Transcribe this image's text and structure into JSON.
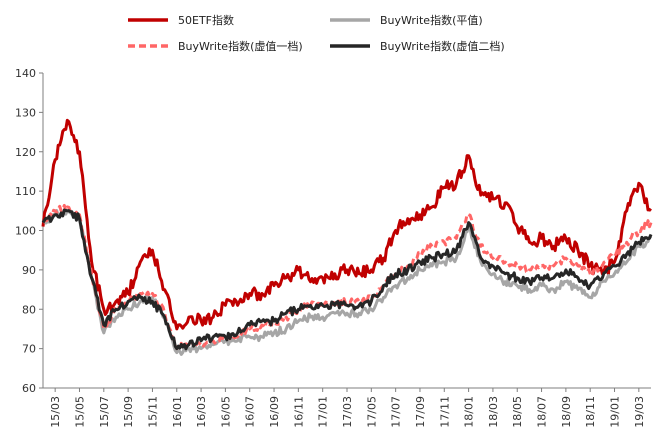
{
  "chart_data": {
    "type": "line",
    "title": "",
    "xlabel": "",
    "ylabel": "",
    "ylim": [
      60,
      140
    ],
    "yticks": [
      60,
      70,
      80,
      90,
      100,
      110,
      120,
      130,
      140
    ],
    "xticks": [
      "15/03",
      "15/05",
      "15/07",
      "15/09",
      "15/11",
      "16/01",
      "16/03",
      "16/05",
      "16/07",
      "16/09",
      "16/11",
      "17/01",
      "17/03",
      "17/05",
      "17/07",
      "17/09",
      "17/11",
      "18/01",
      "18/03",
      "18/05",
      "18/07",
      "18/09",
      "18/11",
      "19/01",
      "19/03"
    ],
    "x": [
      "15/02",
      "15/03",
      "15/04",
      "15/05",
      "15/06",
      "15/07",
      "15/08",
      "15/09",
      "15/10",
      "15/11",
      "15/12",
      "16/01",
      "16/02",
      "16/03",
      "16/04",
      "16/05",
      "16/06",
      "16/07",
      "16/08",
      "16/09",
      "16/10",
      "16/11",
      "16/12",
      "17/01",
      "17/02",
      "17/03",
      "17/04",
      "17/05",
      "17/06",
      "17/07",
      "17/08",
      "17/09",
      "17/10",
      "17/11",
      "17/12",
      "18/01",
      "18/02",
      "18/03",
      "18/04",
      "18/05",
      "18/06",
      "18/07",
      "18/08",
      "18/09",
      "18/10",
      "18/11",
      "18/12",
      "19/01",
      "19/02",
      "19/03",
      "19/04"
    ],
    "legend_position": "top",
    "series": [
      {
        "name": "50ETF指数",
        "color": "#c00000",
        "dash": "solid",
        "values": [
          101,
          118,
          128,
          120,
          92,
          80,
          82,
          84,
          92,
          95,
          85,
          75,
          78,
          77,
          78,
          81,
          81,
          84,
          84,
          86,
          88,
          90,
          87,
          88,
          89,
          90,
          89,
          90,
          93,
          100,
          103,
          104,
          106,
          111,
          112,
          119,
          109,
          108,
          107,
          101,
          97,
          98,
          96,
          98,
          95,
          91,
          89,
          92,
          105,
          112,
          105
        ]
      },
      {
        "name": "BuyWrite指数(平值)",
        "color": "#a6a6a6",
        "dash": "solid",
        "values": [
          102,
          104,
          105,
          103,
          88,
          74,
          78,
          80,
          82,
          83,
          78,
          69,
          70,
          70,
          71,
          72,
          72,
          73,
          73,
          74,
          75,
          77,
          78,
          78,
          79,
          79,
          79,
          80,
          83,
          86,
          88,
          90,
          91,
          92,
          93,
          101,
          92,
          89,
          87,
          86,
          85,
          86,
          85,
          87,
          85,
          83,
          87,
          89,
          92,
          96,
          98
        ]
      },
      {
        "name": "BuyWrite指数(虚值一档)",
        "color": "#ff6666",
        "dash": "dashed",
        "values": [
          102,
          105,
          106,
          104,
          89,
          75,
          80,
          82,
          84,
          84,
          79,
          70,
          71,
          71,
          72,
          73,
          73,
          75,
          76,
          76,
          78,
          80,
          81,
          81,
          82,
          82,
          82,
          83,
          86,
          89,
          91,
          94,
          96,
          97,
          98,
          104,
          96,
          93,
          92,
          91,
          90,
          91,
          91,
          93,
          91,
          89,
          91,
          94,
          97,
          100,
          102
        ]
      },
      {
        "name": "BuyWrite指数(虚值二档)",
        "color": "#262626",
        "dash": "solid",
        "values": [
          102,
          104,
          105,
          103,
          88,
          76,
          80,
          82,
          83,
          82,
          78,
          70,
          71,
          72,
          73,
          73,
          74,
          76,
          77,
          77,
          79,
          80,
          81,
          81,
          81,
          81,
          81,
          82,
          86,
          89,
          90,
          92,
          93,
          94,
          95,
          102,
          93,
          91,
          89,
          88,
          87,
          88,
          88,
          90,
          88,
          86,
          88,
          91,
          94,
          97,
          99
        ]
      }
    ]
  }
}
